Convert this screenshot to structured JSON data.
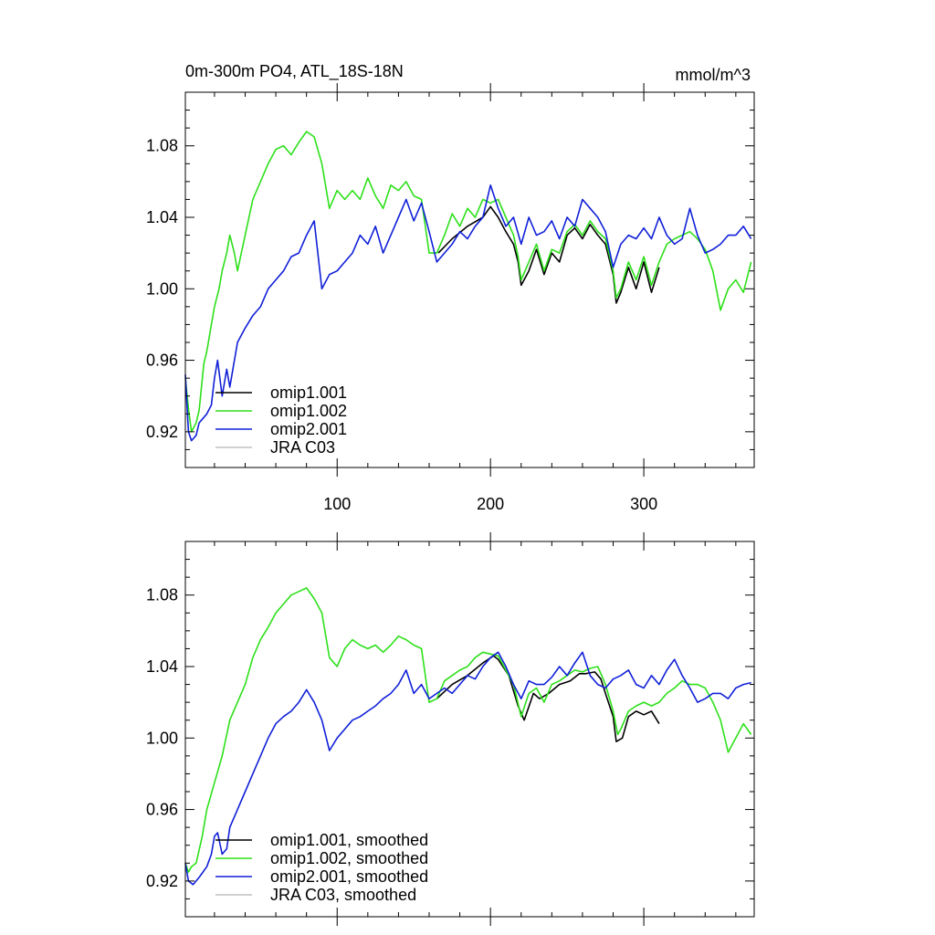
{
  "chart_data": [
    {
      "type": "line",
      "title": "0m-300m PO4, ATL_18S-18N",
      "units": "mmol/m^3",
      "xlim": [
        1,
        372
      ],
      "ylim": [
        0.9,
        1.11
      ],
      "xticks": [
        100,
        200,
        300
      ],
      "xticklabels": [
        "100",
        "200",
        "300"
      ],
      "yticks": [
        0.92,
        0.96,
        1.0,
        1.04,
        1.08
      ],
      "yticklabels": [
        "0.92",
        "0.96",
        "1.00",
        "1.04",
        "1.08"
      ],
      "legend": [
        "omip1.001",
        "omip1.002",
        "omip2.001",
        "JRA C03"
      ],
      "legend_position": "bottom-left",
      "series": [
        {
          "name": "omip1.001",
          "color": "#000000",
          "x": [
            166,
            175,
            185,
            195,
            200,
            205,
            210,
            215,
            218,
            220,
            225,
            230,
            235,
            240,
            245,
            250,
            255,
            260,
            265,
            270,
            275,
            280,
            282,
            285,
            290,
            295,
            300,
            305,
            310
          ],
          "y": [
            1.02,
            1.028,
            1.035,
            1.04,
            1.046,
            1.04,
            1.032,
            1.025,
            1.015,
            1.002,
            1.01,
            1.022,
            1.008,
            1.02,
            1.015,
            1.03,
            1.034,
            1.028,
            1.036,
            1.03,
            1.025,
            1.008,
            0.992,
            0.998,
            1.012,
            1.0,
            1.015,
            0.998,
            1.012
          ]
        },
        {
          "name": "omip1.002",
          "color": "#2de01a",
          "x": [
            1,
            3,
            5,
            8,
            10,
            13,
            15,
            18,
            20,
            23,
            25,
            28,
            30,
            33,
            35,
            40,
            45,
            50,
            55,
            60,
            65,
            70,
            75,
            80,
            85,
            90,
            95,
            100,
            105,
            110,
            115,
            120,
            125,
            130,
            135,
            140,
            145,
            150,
            155,
            160,
            165,
            170,
            175,
            180,
            185,
            190,
            195,
            200,
            205,
            210,
            215,
            218,
            220,
            225,
            230,
            235,
            240,
            245,
            250,
            255,
            260,
            265,
            270,
            275,
            280,
            282,
            285,
            290,
            295,
            300,
            305,
            310,
            315,
            320,
            325,
            330,
            335,
            340,
            345,
            350,
            355,
            360,
            365,
            370
          ],
          "y": [
            0.95,
            0.933,
            0.92,
            0.925,
            0.932,
            0.958,
            0.965,
            0.98,
            0.99,
            1.0,
            1.01,
            1.02,
            1.03,
            1.02,
            1.01,
            1.03,
            1.05,
            1.06,
            1.07,
            1.078,
            1.08,
            1.075,
            1.082,
            1.088,
            1.085,
            1.07,
            1.045,
            1.055,
            1.05,
            1.055,
            1.05,
            1.062,
            1.052,
            1.045,
            1.058,
            1.055,
            1.06,
            1.052,
            1.05,
            1.02,
            1.02,
            1.03,
            1.042,
            1.035,
            1.045,
            1.04,
            1.05,
            1.048,
            1.05,
            1.04,
            1.03,
            1.018,
            1.005,
            1.015,
            1.025,
            1.01,
            1.022,
            1.02,
            1.032,
            1.036,
            1.03,
            1.038,
            1.032,
            1.028,
            1.01,
            0.995,
            1.0,
            1.015,
            1.005,
            1.018,
            1.002,
            1.015,
            1.025,
            1.028,
            1.03,
            1.032,
            1.028,
            1.022,
            1.01,
            0.988,
            1.0,
            1.005,
            0.998,
            1.015
          ]
        },
        {
          "name": "omip2.001",
          "color": "#1020d8",
          "x": [
            1,
            3,
            5,
            8,
            10,
            15,
            18,
            20,
            22,
            25,
            28,
            30,
            35,
            40,
            45,
            50,
            55,
            60,
            65,
            70,
            75,
            80,
            85,
            90,
            95,
            100,
            105,
            110,
            115,
            120,
            125,
            130,
            135,
            140,
            145,
            150,
            155,
            160,
            165,
            170,
            175,
            180,
            185,
            190,
            195,
            200,
            205,
            210,
            215,
            220,
            225,
            230,
            235,
            240,
            245,
            250,
            255,
            260,
            265,
            270,
            275,
            280,
            285,
            290,
            295,
            300,
            305,
            310,
            315,
            320,
            325,
            330,
            335,
            340,
            345,
            350,
            355,
            360,
            365,
            370
          ],
          "y": [
            0.952,
            0.92,
            0.915,
            0.918,
            0.925,
            0.93,
            0.935,
            0.95,
            0.96,
            0.94,
            0.955,
            0.945,
            0.97,
            0.978,
            0.985,
            0.99,
            1.0,
            1.005,
            1.01,
            1.018,
            1.02,
            1.03,
            1.038,
            1.0,
            1.008,
            1.01,
            1.015,
            1.02,
            1.03,
            1.025,
            1.035,
            1.02,
            1.03,
            1.04,
            1.05,
            1.038,
            1.048,
            1.032,
            1.015,
            1.02,
            1.025,
            1.032,
            1.028,
            1.035,
            1.04,
            1.058,
            1.045,
            1.035,
            1.04,
            1.025,
            1.04,
            1.03,
            1.032,
            1.038,
            1.028,
            1.04,
            1.035,
            1.05,
            1.045,
            1.04,
            1.032,
            1.012,
            1.025,
            1.03,
            1.028,
            1.034,
            1.028,
            1.04,
            1.03,
            1.025,
            1.028,
            1.045,
            1.03,
            1.02,
            1.022,
            1.025,
            1.03,
            1.03,
            1.035,
            1.028
          ]
        },
        {
          "name": "JRA C03",
          "color": "#c0c0c0",
          "x": [],
          "y": []
        }
      ]
    },
    {
      "type": "line",
      "title": "",
      "xlim": [
        1,
        372
      ],
      "ylim": [
        0.9,
        1.11
      ],
      "xticks": [
        100,
        200,
        300
      ],
      "yticks": [
        0.92,
        0.96,
        1.0,
        1.04,
        1.08
      ],
      "yticklabels": [
        "0.92",
        "0.96",
        "1.00",
        "1.04",
        "1.08"
      ],
      "legend": [
        "omip1.001, smoothed",
        "omip1.002, smoothed",
        "omip2.001, smoothed",
        "JRA C03, smoothed"
      ],
      "legend_position": "bottom-left",
      "series": [
        {
          "name": "omip1.001, smoothed",
          "color": "#000000",
          "x": [
            165,
            175,
            185,
            195,
            202,
            205,
            212,
            218,
            222,
            228,
            232,
            238,
            245,
            252,
            258,
            262,
            268,
            272,
            275,
            280,
            282,
            286,
            290,
            295,
            300,
            305,
            310
          ],
          "y": [
            1.022,
            1.03,
            1.035,
            1.042,
            1.046,
            1.044,
            1.035,
            1.018,
            1.01,
            1.025,
            1.022,
            1.025,
            1.03,
            1.032,
            1.036,
            1.036,
            1.037,
            1.033,
            1.025,
            1.012,
            0.998,
            1.0,
            1.012,
            1.015,
            1.013,
            1.015,
            1.008
          ]
        },
        {
          "name": "omip1.002, smoothed",
          "color": "#2de01a",
          "x": [
            1,
            3,
            5,
            8,
            12,
            15,
            20,
            25,
            30,
            35,
            40,
            45,
            50,
            55,
            60,
            65,
            70,
            75,
            80,
            85,
            90,
            95,
            100,
            105,
            110,
            115,
            120,
            125,
            130,
            135,
            140,
            145,
            150,
            155,
            160,
            165,
            170,
            175,
            180,
            185,
            190,
            195,
            200,
            205,
            210,
            215,
            220,
            225,
            230,
            235,
            240,
            245,
            250,
            255,
            260,
            265,
            270,
            275,
            280,
            283,
            285,
            290,
            295,
            300,
            305,
            310,
            315,
            320,
            325,
            330,
            335,
            340,
            345,
            350,
            355,
            360,
            365,
            370
          ],
          "y": [
            0.93,
            0.925,
            0.928,
            0.93,
            0.945,
            0.96,
            0.975,
            0.99,
            1.01,
            1.02,
            1.03,
            1.045,
            1.055,
            1.062,
            1.07,
            1.075,
            1.08,
            1.082,
            1.084,
            1.078,
            1.07,
            1.045,
            1.04,
            1.05,
            1.055,
            1.052,
            1.05,
            1.052,
            1.048,
            1.052,
            1.057,
            1.055,
            1.052,
            1.05,
            1.02,
            1.022,
            1.032,
            1.035,
            1.038,
            1.04,
            1.045,
            1.048,
            1.047,
            1.046,
            1.038,
            1.03,
            1.012,
            1.025,
            1.028,
            1.02,
            1.03,
            1.032,
            1.035,
            1.038,
            1.037,
            1.039,
            1.04,
            1.03,
            1.015,
            1.002,
            1.005,
            1.015,
            1.018,
            1.02,
            1.018,
            1.02,
            1.025,
            1.028,
            1.032,
            1.03,
            1.03,
            1.028,
            1.02,
            1.01,
            0.992,
            1.0,
            1.008,
            1.002
          ]
        },
        {
          "name": "omip2.001, smoothed",
          "color": "#1020d8",
          "x": [
            1,
            3,
            6,
            10,
            15,
            18,
            20,
            22,
            25,
            28,
            30,
            35,
            40,
            45,
            50,
            55,
            60,
            65,
            70,
            75,
            80,
            85,
            90,
            95,
            100,
            105,
            110,
            115,
            120,
            125,
            130,
            135,
            140,
            145,
            150,
            155,
            160,
            165,
            170,
            175,
            180,
            185,
            190,
            195,
            200,
            205,
            210,
            215,
            220,
            225,
            230,
            235,
            240,
            245,
            250,
            255,
            260,
            265,
            270,
            275,
            280,
            285,
            290,
            295,
            300,
            305,
            310,
            315,
            320,
            325,
            330,
            335,
            340,
            345,
            350,
            355,
            360,
            365,
            370
          ],
          "y": [
            0.93,
            0.92,
            0.918,
            0.922,
            0.928,
            0.935,
            0.945,
            0.947,
            0.935,
            0.938,
            0.95,
            0.96,
            0.97,
            0.98,
            0.99,
            1.0,
            1.008,
            1.012,
            1.015,
            1.02,
            1.027,
            1.02,
            1.01,
            0.993,
            1.0,
            1.005,
            1.01,
            1.012,
            1.015,
            1.018,
            1.022,
            1.025,
            1.03,
            1.038,
            1.025,
            1.03,
            1.022,
            1.025,
            1.028,
            1.025,
            1.03,
            1.035,
            1.033,
            1.04,
            1.045,
            1.048,
            1.04,
            1.03,
            1.022,
            1.032,
            1.03,
            1.03,
            1.034,
            1.04,
            1.035,
            1.042,
            1.048,
            1.035,
            1.03,
            1.028,
            1.033,
            1.035,
            1.038,
            1.03,
            1.028,
            1.035,
            1.03,
            1.038,
            1.044,
            1.035,
            1.028,
            1.02,
            1.022,
            1.025,
            1.025,
            1.022,
            1.028,
            1.03,
            1.031
          ]
        },
        {
          "name": "JRA C03, smoothed",
          "color": "#c0c0c0",
          "x": [],
          "y": []
        }
      ]
    }
  ]
}
